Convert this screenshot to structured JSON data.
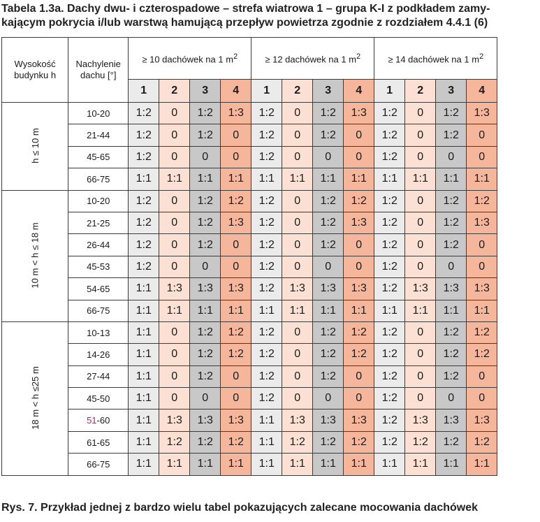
{
  "caption": "Tabela 1.3a. Dachy dwu- i czterospadowe – strefa wiatrowa 1 – grupa K-I z podkładem zamy-kającym pokrycia i/lub warstwą hamującą przepływ powietrza zgodnie z rozdziałem 4.4.1 (6)",
  "caption_line1": "Tabela 1.3a. Dachy dwu- i czterospadowe – strefa wiatrowa 1 – grupa K-I z podkładem zamy-",
  "caption_line2": "kającym pokrycia i/lub warstwą hamującą przepływ powietrza zgodnie z rozdziałem 4.4.1 (6)",
  "headers": {
    "height_line1": "Wysokość",
    "height_line2": "budynku h",
    "slope_line1": "Nachylenie",
    "slope_line2": "dachu [°]",
    "groups": [
      {
        "prefix": "≥ 10 dachówek na 1 m",
        "sup": "2"
      },
      {
        "prefix": "≥ 12 dachówek na 1 m",
        "sup": "2"
      },
      {
        "prefix": "≥ 14 dachówek na 1 m",
        "sup": "2"
      }
    ],
    "sub": [
      "1",
      "2",
      "3",
      "4"
    ]
  },
  "sections": [
    {
      "label": "h ≤ 10 m",
      "rows": [
        {
          "slope": "10-20",
          "vals": [
            "1:2",
            "0",
            "1:2",
            "1:3",
            "1:2",
            "0",
            "1:2",
            "1:3",
            "1:2",
            "0",
            "1:2",
            "1:3"
          ]
        },
        {
          "slope": "21-44",
          "vals": [
            "1:2",
            "0",
            "1:2",
            "0",
            "1:2",
            "0",
            "1:2",
            "0",
            "1:2",
            "0",
            "1:2",
            "0"
          ]
        },
        {
          "slope": "45-65",
          "vals": [
            "1:2",
            "0",
            "0",
            "0",
            "1:2",
            "0",
            "0",
            "0",
            "1:2",
            "0",
            "0",
            "0"
          ]
        },
        {
          "slope": "66-75",
          "vals": [
            "1:1",
            "1:1",
            "1:1",
            "1:1",
            "1:1",
            "1:1",
            "1:1",
            "1:1",
            "1:1",
            "1:1",
            "1:1",
            "1:1"
          ]
        }
      ]
    },
    {
      "label": "10 m < h ≤ 18 m",
      "rows": [
        {
          "slope": "10-20",
          "vals": [
            "1:2",
            "0",
            "1:2",
            "1:2",
            "1:2",
            "0",
            "1:2",
            "1:2",
            "1:2",
            "0",
            "1:2",
            "1:2"
          ]
        },
        {
          "slope": "21-25",
          "vals": [
            "1:2",
            "0",
            "1:2",
            "1:3",
            "1:2",
            "0",
            "1:2",
            "1:3",
            "1:2",
            "0",
            "1:2",
            "1:3"
          ]
        },
        {
          "slope": "26-44",
          "vals": [
            "1:2",
            "0",
            "1:2",
            "0",
            "1:2",
            "0",
            "1:2",
            "0",
            "1:2",
            "0",
            "1:2",
            "0"
          ]
        },
        {
          "slope": "45-53",
          "vals": [
            "1:2",
            "0",
            "0",
            "0",
            "1:2",
            "0",
            "0",
            "0",
            "1:2",
            "0",
            "0",
            "0"
          ]
        },
        {
          "slope": "54-65",
          "vals": [
            "1:1",
            "1:3",
            "1:3",
            "1:3",
            "1:2",
            "1:3",
            "1:3",
            "1:3",
            "1:2",
            "1:3",
            "1:3",
            "1:3"
          ]
        },
        {
          "slope": "66-75",
          "vals": [
            "1:1",
            "1:1",
            "1:1",
            "1:1",
            "1:1",
            "1:1",
            "1:1",
            "1:1",
            "1:1",
            "1:1",
            "1:1",
            "1:1"
          ]
        }
      ]
    },
    {
      "label": "18 m < h ≤25 m",
      "rows": [
        {
          "slope": "10-13",
          "vals": [
            "1:1",
            "0",
            "1:2",
            "1:2",
            "1:2",
            "0",
            "1:2",
            "1:2",
            "1:2",
            "0",
            "1:2",
            "1:2"
          ]
        },
        {
          "slope": "14-26",
          "vals": [
            "1:1",
            "0",
            "1:2",
            "1:2",
            "1:2",
            "0",
            "1:2",
            "1:2",
            "1:2",
            "0",
            "1:2",
            "1:2"
          ]
        },
        {
          "slope": "27-44",
          "vals": [
            "1:1",
            "0",
            "1:2",
            "0",
            "1:2",
            "0",
            "1:2",
            "0",
            "1:2",
            "0",
            "1:2",
            "0"
          ]
        },
        {
          "slope": "45-50",
          "vals": [
            "1:1",
            "0",
            "0",
            "0",
            "1:2",
            "0",
            "0",
            "0",
            "1:2",
            "0",
            "0",
            "0"
          ]
        },
        {
          "slope": "51-60",
          "slope_hl": "51",
          "slope_rest": "-60",
          "vals": [
            "1:1",
            "1:3",
            "1:3",
            "1:3",
            "1:1",
            "1:3",
            "1:3",
            "1:3",
            "1:2",
            "1:3",
            "1:3",
            "1:3"
          ]
        },
        {
          "slope": "61-65",
          "vals": [
            "1:1",
            "1:2",
            "1:2",
            "1:2",
            "1:1",
            "1:2",
            "1:2",
            "1:2",
            "1:2",
            "1:2",
            "1:2",
            "1:2"
          ]
        },
        {
          "slope": "66-75",
          "vals": [
            "1:1",
            "1:1",
            "1:1",
            "1:1",
            "1:1",
            "1:1",
            "1:1",
            "1:1",
            "1:1",
            "1:1",
            "1:1",
            "1:1"
          ]
        }
      ]
    }
  ],
  "footer": "Rys. 7. Przykład jednej z bardzo wielu tabel pokazujących zalecane mocowania dachówek",
  "colors": {
    "col1": "#ebebeb",
    "col2": "#fbe0d3",
    "col3": "#c8c8c8",
    "col4": "#f6b69c",
    "highlight_text": "#b0206a"
  }
}
